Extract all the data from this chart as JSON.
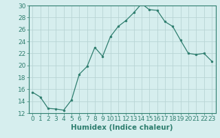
{
  "xlabel": "Humidex (Indice chaleur)",
  "x": [
    0,
    1,
    2,
    3,
    4,
    5,
    6,
    7,
    8,
    9,
    10,
    11,
    12,
    13,
    14,
    15,
    16,
    17,
    18,
    19,
    20,
    21,
    22,
    23
  ],
  "y": [
    15.5,
    14.7,
    12.8,
    12.7,
    12.5,
    14.2,
    18.5,
    19.8,
    23.0,
    21.5,
    24.8,
    26.5,
    27.5,
    28.8,
    30.3,
    29.3,
    29.2,
    27.3,
    26.5,
    24.2,
    22.0,
    21.8,
    22.0,
    20.7
  ],
  "line_color": "#2d7d6e",
  "marker": ".",
  "marker_size": 4,
  "bg_color": "#d6eeee",
  "grid_color": "#b8d4d4",
  "ylim": [
    12,
    30
  ],
  "xlim_min": -0.5,
  "xlim_max": 23.5,
  "yticks": [
    12,
    14,
    16,
    18,
    20,
    22,
    24,
    26,
    28,
    30
  ],
  "xticks": [
    0,
    1,
    2,
    3,
    4,
    5,
    6,
    7,
    8,
    9,
    10,
    11,
    12,
    13,
    14,
    15,
    16,
    17,
    18,
    19,
    20,
    21,
    22,
    23
  ],
  "tick_label_fontsize": 6.5,
  "xlabel_fontsize": 7.5,
  "tick_color": "#2d7d6e",
  "spine_color": "#2d7d6e"
}
